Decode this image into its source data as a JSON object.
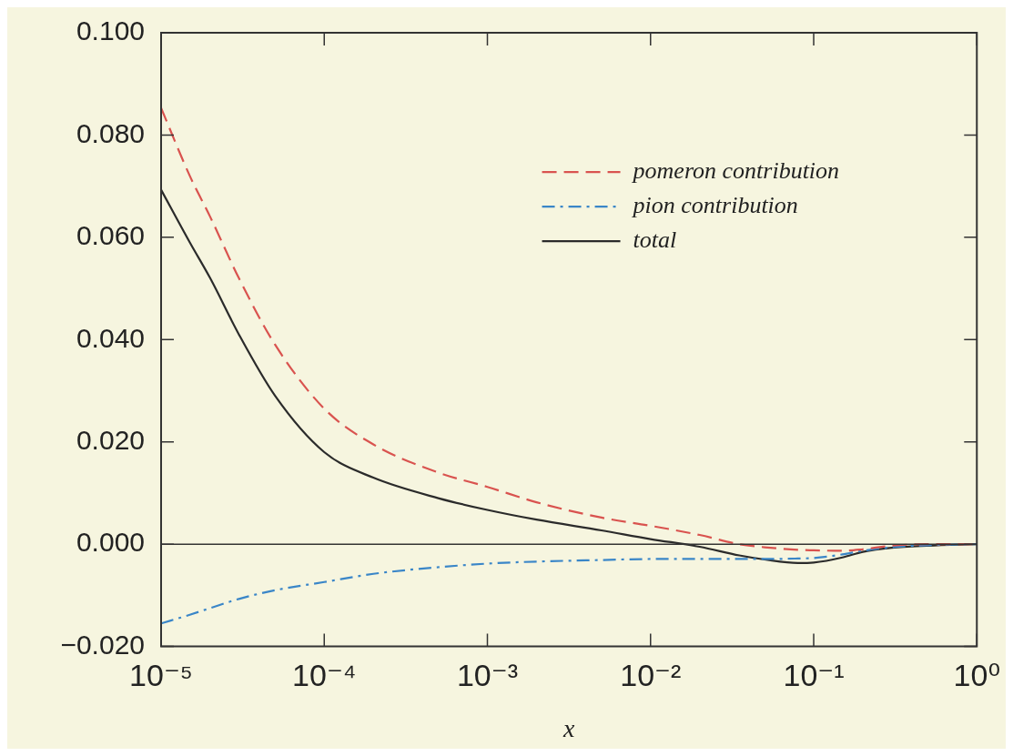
{
  "chart_data": {
    "type": "line",
    "xlabel": "x",
    "log": "x",
    "legend": "top right",
    "xlim": [
      1e-05,
      1
    ],
    "xticks": [
      {
        "value": 1e-05,
        "label": "10⁻⁵"
      },
      {
        "value": 0.0001,
        "label": "10⁻⁴"
      },
      {
        "value": 0.001,
        "label": "10⁻³"
      },
      {
        "value": 0.01,
        "label": "10⁻²"
      },
      {
        "value": 0.1,
        "label": "10⁻¹"
      },
      {
        "value": 1,
        "label": "10⁰"
      }
    ],
    "ylim": [
      -0.02,
      0.1
    ],
    "yticks": [
      {
        "value": -0.02,
        "label": "−0.020"
      },
      {
        "value": 0,
        "label": "0.000"
      },
      {
        "value": 0.02,
        "label": "0.020"
      },
      {
        "value": 0.04,
        "label": "0.040"
      },
      {
        "value": 0.06,
        "label": "0.060"
      },
      {
        "value": 0.08,
        "label": "0.080"
      },
      {
        "value": 0.1,
        "label": "0.100"
      }
    ],
    "ref_lines": [
      {
        "axis": "y",
        "value": 0,
        "color": "#333333"
      }
    ],
    "x": [
      1e-05,
      1.5e-05,
      2e-05,
      3e-05,
      5e-05,
      0.0001,
      0.0002,
      0.0005,
      0.001,
      0.002,
      0.005,
      0.01,
      0.02,
      0.035,
      0.05,
      0.08,
      0.1,
      0.15,
      0.2,
      0.3,
      0.5,
      1
    ],
    "series": [
      {
        "name": "pomeron contribution",
        "color": "#d9534f",
        "line_style": "dashed",
        "values": [
          0.0853,
          0.072,
          0.064,
          0.052,
          0.039,
          0.0265,
          0.0195,
          0.014,
          0.0112,
          0.0082,
          0.0052,
          0.0036,
          0.0018,
          0,
          -0.0006,
          -0.0011,
          -0.0012,
          -0.0013,
          -0.001,
          -0.0003,
          0,
          0
        ]
      },
      {
        "name": "pion contribution",
        "color": "#3a86c8",
        "line_style": "dashdot",
        "values": [
          -0.0155,
          -0.0138,
          -0.0125,
          -0.0107,
          -0.009,
          -0.0074,
          -0.0058,
          -0.0045,
          -0.0038,
          -0.0034,
          -0.0031,
          -0.0029,
          -0.0029,
          -0.0029,
          -0.0029,
          -0.0028,
          -0.0027,
          -0.002,
          -0.0013,
          -0.0006,
          -0.0002,
          0
        ]
      },
      {
        "name": "total",
        "color": "#2b2b2b",
        "line_style": "solid",
        "values": [
          0.0693,
          0.059,
          0.052,
          0.041,
          0.029,
          0.018,
          0.013,
          0.009,
          0.0067,
          0.0048,
          0.0027,
          0.001,
          -0.0005,
          -0.0022,
          -0.003,
          -0.0037,
          -0.0036,
          -0.0026,
          -0.0015,
          -0.0007,
          -0.0003,
          0
        ]
      }
    ]
  }
}
